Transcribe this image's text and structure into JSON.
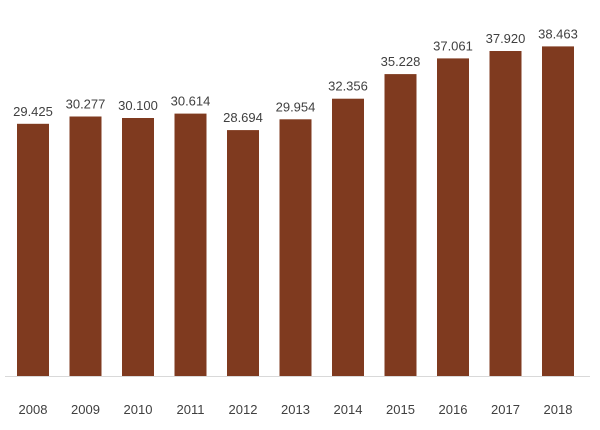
{
  "chart_data": {
    "type": "bar",
    "categories": [
      "2008",
      "2009",
      "2010",
      "2011",
      "2012",
      "2013",
      "2014",
      "2015",
      "2016",
      "2017",
      "2018"
    ],
    "values": [
      29.425,
      30.277,
      30.1,
      30.614,
      28.694,
      29.954,
      32.356,
      35.228,
      37.061,
      37.92,
      38.463
    ],
    "value_labels": [
      "29.425",
      "30.277",
      "30.100",
      "30.614",
      "28.694",
      "29.954",
      "32.356",
      "35.228",
      "37.061",
      "37.920",
      "38.463"
    ],
    "title": "",
    "xlabel": "",
    "ylabel": "",
    "ylim": [
      0,
      40
    ],
    "grid": false,
    "legend": "none",
    "bar_color": "#7f3a1f",
    "axis_color": "#d9d9d9",
    "label_color": "#404040"
  }
}
